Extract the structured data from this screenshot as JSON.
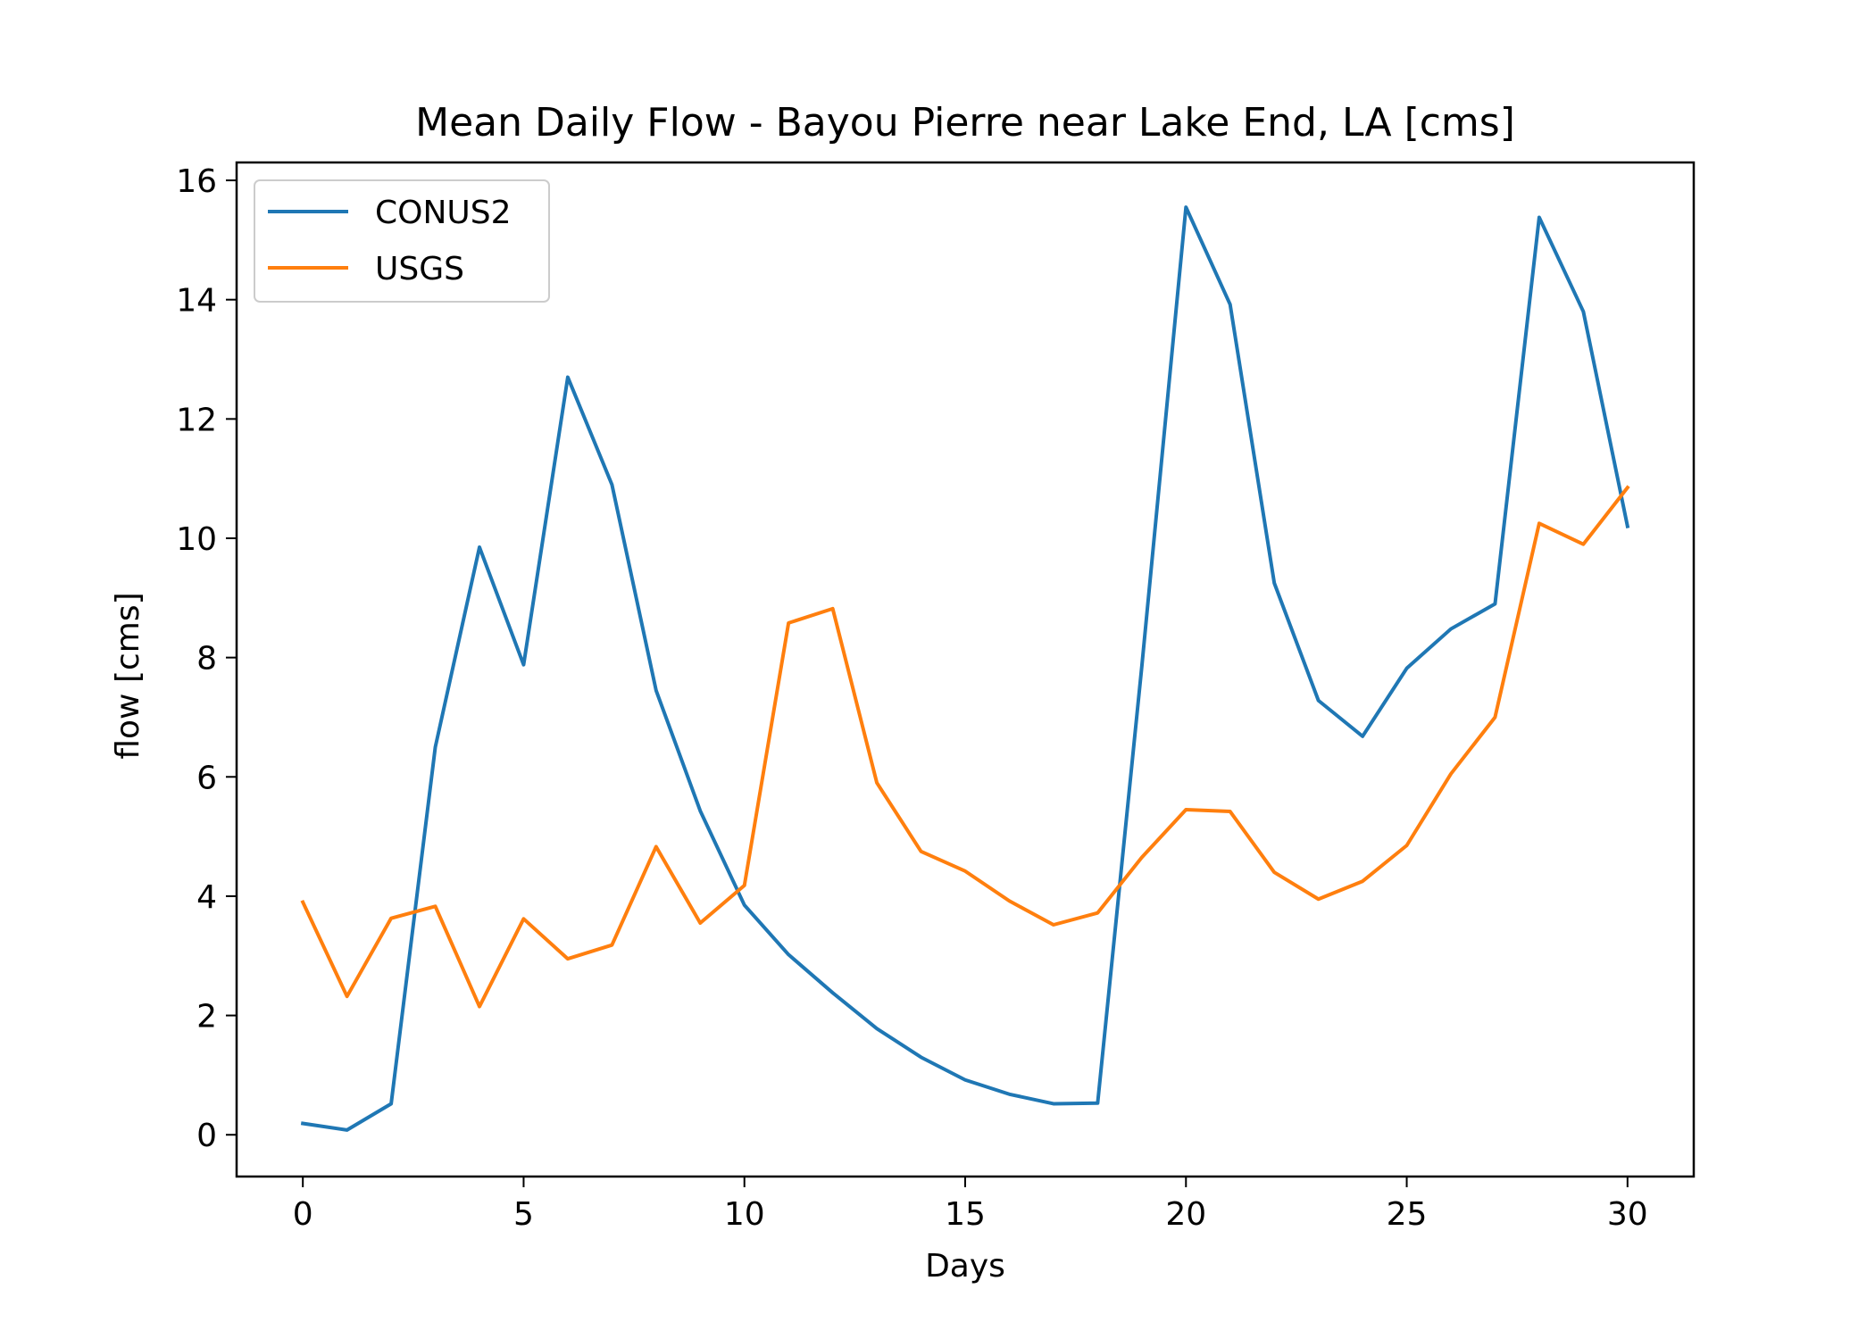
{
  "chart_data": {
    "type": "line",
    "title": "Mean Daily Flow - Bayou Pierre near Lake End, LA [cms]",
    "xlabel": "Days",
    "ylabel": "flow [cms]",
    "xlim": [
      -1.5,
      31.5
    ],
    "ylim": [
      -0.7,
      16.3
    ],
    "xticks": [
      0,
      5,
      10,
      15,
      20,
      25,
      30
    ],
    "yticks": [
      0,
      2,
      4,
      6,
      8,
      10,
      12,
      14,
      16
    ],
    "legend_position": "upper-left",
    "grid": false,
    "x": [
      0,
      1,
      2,
      3,
      4,
      5,
      6,
      7,
      8,
      9,
      10,
      11,
      12,
      13,
      14,
      15,
      16,
      17,
      18,
      19,
      20,
      21,
      22,
      23,
      24,
      25,
      26,
      27,
      28,
      29,
      30
    ],
    "series": [
      {
        "name": "CONUS2",
        "color": "#1f77b4",
        "values": [
          0.19,
          0.08,
          0.52,
          6.5,
          9.85,
          7.88,
          12.7,
          10.9,
          7.45,
          5.43,
          3.85,
          3.02,
          2.38,
          1.78,
          1.3,
          0.92,
          0.68,
          0.52,
          0.53,
          7.85,
          15.55,
          13.92,
          9.25,
          7.28,
          6.68,
          7.82,
          8.48,
          8.9,
          15.38,
          13.8,
          10.2
        ]
      },
      {
        "name": "USGS",
        "color": "#ff7f0e",
        "values": [
          3.9,
          2.32,
          3.63,
          3.83,
          2.15,
          3.62,
          2.95,
          3.18,
          4.83,
          3.55,
          4.18,
          8.58,
          8.82,
          5.9,
          4.75,
          4.42,
          3.92,
          3.52,
          3.72,
          4.65,
          5.45,
          5.42,
          4.4,
          3.95,
          4.25,
          4.85,
          6.05,
          7.0,
          10.25,
          9.9,
          10.85
        ]
      }
    ]
  }
}
